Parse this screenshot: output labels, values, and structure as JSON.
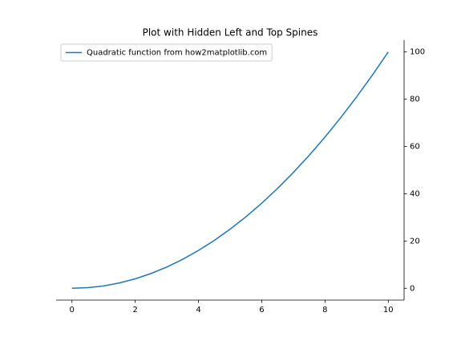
{
  "chart_data": {
    "type": "line",
    "title": "Plot with Hidden Left and Top Spines",
    "x": [
      0,
      0.5,
      1,
      1.5,
      2,
      2.5,
      3,
      3.5,
      4,
      4.5,
      5,
      5.5,
      6,
      6.5,
      7,
      7.5,
      8,
      8.5,
      9,
      9.5,
      10
    ],
    "series": [
      {
        "name": "Quadratic function from how2matplotlib.com",
        "color": "#1f77b4",
        "values": [
          0,
          0.25,
          1,
          2.25,
          4,
          6.25,
          9,
          12.25,
          16,
          20.25,
          25,
          30.25,
          36,
          42.25,
          49,
          56.25,
          64,
          72.25,
          81,
          90.25,
          100
        ]
      }
    ],
    "xlim": [
      -0.5,
      10.5
    ],
    "xticks": [
      0,
      2,
      4,
      6,
      8,
      10
    ],
    "ylim": [
      -5,
      105
    ],
    "yticks": [
      0,
      20,
      40,
      60,
      80,
      100
    ],
    "legend": "upper left"
  }
}
